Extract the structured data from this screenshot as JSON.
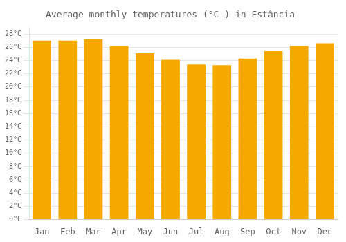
{
  "chart_data": {
    "type": "bar",
    "title": "Average monthly temperatures (°C ) in Estância",
    "categories": [
      "Jan",
      "Feb",
      "Mar",
      "Apr",
      "May",
      "Jun",
      "Jul",
      "Aug",
      "Sep",
      "Oct",
      "Nov",
      "Dec"
    ],
    "values": [
      27,
      27,
      27.2,
      26.2,
      25.1,
      24.1,
      23.4,
      23.3,
      24.3,
      25.4,
      26.2,
      26.6
    ],
    "color": "#F5A800",
    "ylim": [
      0,
      29
    ],
    "yticks": [
      {
        "value": 0,
        "label": "0°C"
      },
      {
        "value": 2,
        "label": "2°C"
      },
      {
        "value": 4,
        "label": "4°C"
      },
      {
        "value": 6,
        "label": "6°C"
      },
      {
        "value": 8,
        "label": "8°C"
      },
      {
        "value": 10,
        "label": "10°C"
      },
      {
        "value": 12,
        "label": "12°C"
      },
      {
        "value": 14,
        "label": "14°C"
      },
      {
        "value": 16,
        "label": "16°C"
      },
      {
        "value": 18,
        "label": "18°C"
      },
      {
        "value": 20,
        "label": "20°C"
      },
      {
        "value": 22,
        "label": "22°C"
      },
      {
        "value": 24,
        "label": "24°C"
      },
      {
        "value": 26,
        "label": "26°C"
      },
      {
        "value": 28,
        "label": "28°C"
      }
    ],
    "grid": true
  }
}
